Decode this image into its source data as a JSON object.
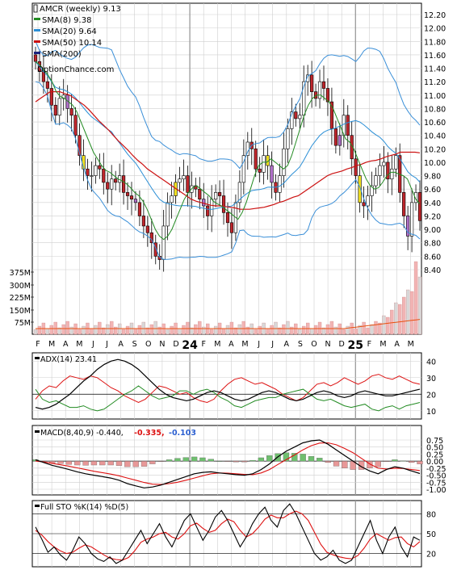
{
  "colors": {
    "sma8": "#228b22",
    "sma20": "#2b8fd6",
    "sma50": "#cc1111",
    "sma200": "#1a237e",
    "bollinger": "#3a8fd8",
    "bandOutside": "#e8e000",
    "candleUp": "#ffffff",
    "candleDown": "#c0262c",
    "candlePurple": "#b070c8",
    "candleYellow": "#f0e020",
    "volume": "#f2b4b4",
    "volumeAlt": "#d8d8d8",
    "volumeMA": "#e85010",
    "adx": "#000000",
    "plusDI": "#dd1111",
    "minusDI": "#228b22",
    "macdLine": "#000000",
    "signalLine": "#dd1111",
    "histUp": "#6fbf6f",
    "histDown": "#e89898",
    "stoK": "#000000",
    "stoD": "#dd1111",
    "grid": "#cfcfcf",
    "yearLine": "#9a9a9a"
  },
  "price_panel": {
    "legend": [
      {
        "label": "AMCR (weekly) 9.13",
        "icon": "candle-icon"
      },
      {
        "label": "SMA(8) 9.38",
        "color_key": "sma8"
      },
      {
        "label": "SMA(20) 9.64",
        "color_key": "sma20"
      },
      {
        "label": "SMA(50) 10.14",
        "color_key": "sma50"
      },
      {
        "label": "SMA(200)",
        "color_key": "sma200"
      }
    ],
    "watermark": "OptionChance.com",
    "price_ticks": [
      "12.20",
      "12.00",
      "11.80",
      "11.60",
      "11.40",
      "11.20",
      "11.00",
      "10.80",
      "10.60",
      "10.40",
      "10.20",
      "10.00",
      "9.80",
      "9.60",
      "9.40",
      "9.20",
      "9.00",
      "8.80",
      "8.60",
      "8.40"
    ],
    "volume_ticks": [
      "375M",
      "300M",
      "225M",
      "150M",
      "75M"
    ]
  },
  "x_axis": {
    "month_labels": [
      "F",
      "M",
      "A",
      "M",
      "J",
      "J",
      "A",
      "S",
      "O",
      "N",
      "D",
      "24",
      "F",
      "M",
      "A",
      "M",
      "J",
      "J",
      "A",
      "S",
      "O",
      "N",
      "D",
      "25",
      "F",
      "M",
      "A",
      "M"
    ]
  },
  "adx_panel": {
    "label": "ADX(14) 23.41",
    "ticks": [
      "40",
      "30",
      "20",
      "10"
    ]
  },
  "macd_panel": {
    "label": "MACD(8,40,9) -0.440,",
    "signal_value": "-0.335,",
    "hist_value": "-0.103",
    "ticks": [
      "0.75",
      "0.50",
      "0.25",
      "0.00",
      "-0.25",
      "-0.50",
      "-0.75",
      "-1.00"
    ]
  },
  "sto_panel": {
    "label": "Full STO %K(14) %D(5)",
    "ticks": [
      "80",
      "50",
      "20"
    ]
  },
  "chart_data": [
    {
      "type": "candlestick",
      "title": "AMCR (weekly) 9.13",
      "x_unit": "weeks (Feb 2023 - May 2025)",
      "ylim": [
        8.3,
        12.3
      ],
      "close": [
        11.5,
        11.35,
        11.2,
        11.1,
        10.85,
        10.7,
        10.95,
        11.0,
        10.8,
        10.7,
        10.4,
        10.1,
        9.9,
        9.8,
        9.8,
        9.95,
        9.9,
        9.7,
        9.6,
        9.75,
        9.7,
        9.8,
        9.55,
        9.5,
        9.45,
        9.4,
        9.2,
        9.05,
        8.95,
        8.8,
        8.6,
        8.55,
        9.05,
        9.4,
        9.5,
        9.7,
        9.75,
        9.8,
        9.55,
        9.65,
        9.6,
        9.45,
        9.35,
        9.2,
        9.45,
        9.55,
        9.5,
        9.25,
        9.1,
        8.95,
        9.4,
        9.7,
        10.1,
        10.3,
        10.2,
        9.9,
        9.85,
        10.1,
        9.95,
        9.7,
        9.55,
        9.8,
        10.2,
        10.5,
        10.75,
        10.65,
        10.7,
        11.2,
        11.3,
        11.05,
        10.95,
        11.2,
        11.1,
        10.9,
        10.5,
        10.25,
        10.4,
        10.7,
        10.4,
        10.05,
        9.8,
        9.4,
        9.35,
        9.5,
        9.65,
        9.8,
        9.95,
        10.0,
        9.75,
        9.9,
        10.1,
        9.55,
        9.2,
        8.9,
        9.4,
        9.55,
        9.13
      ],
      "sma8": [
        11.5,
        11.45,
        11.38,
        11.3,
        11.2,
        11.05,
        10.98,
        10.95,
        10.9,
        10.85,
        10.75,
        10.6,
        10.45,
        10.3,
        10.15,
        10.05,
        9.95,
        9.88,
        9.85,
        9.8,
        9.75,
        9.72,
        9.68,
        9.62,
        9.55,
        9.5,
        9.42,
        9.3,
        9.15,
        9.0,
        8.9,
        8.85,
        8.9,
        9.0,
        9.15,
        9.3,
        9.45,
        9.55,
        9.62,
        9.65,
        9.6,
        9.55,
        9.5,
        9.42,
        9.38,
        9.35,
        9.3,
        9.25,
        9.2,
        9.15,
        9.25,
        9.4,
        9.6,
        9.8,
        9.95,
        10.0,
        10.0,
        10.05,
        10.0,
        9.95,
        9.9,
        9.95,
        10.1,
        10.3,
        10.5,
        10.7,
        10.85,
        10.95,
        11.0,
        11.0,
        10.95,
        10.9,
        10.8,
        10.65,
        10.5,
        10.35,
        10.3,
        10.2,
        10.05,
        9.9,
        9.75,
        9.65,
        9.6,
        9.62,
        9.7,
        9.8,
        9.85,
        9.85,
        9.82,
        9.8,
        9.75,
        9.6,
        9.45,
        9.38
      ],
      "sma50": [
        10.9,
        10.95,
        11.0,
        11.05,
        11.05,
        11.05,
        11.02,
        11.0,
        10.95,
        10.9,
        10.85,
        10.78,
        10.7,
        10.62,
        10.55,
        10.48,
        10.4,
        10.32,
        10.25,
        10.18,
        10.1,
        10.03,
        9.97,
        9.9,
        9.85,
        9.8,
        9.75,
        9.7,
        9.65,
        9.6,
        9.55,
        9.5,
        9.45,
        9.42,
        9.4,
        9.38,
        9.36,
        9.35,
        9.35,
        9.34,
        9.33,
        9.32,
        9.3,
        9.3,
        9.3,
        9.31,
        9.32,
        9.33,
        9.35,
        9.37,
        9.4,
        9.42,
        9.45,
        9.48,
        9.5,
        9.55,
        9.6,
        9.65,
        9.7,
        9.75,
        9.8,
        9.83,
        9.85,
        9.87,
        9.9,
        9.92,
        9.95,
        9.97,
        10.0,
        10.02,
        10.03,
        10.05,
        10.08,
        10.1,
        10.12,
        10.15,
        10.15,
        10.15,
        10.15,
        10.14
      ]
    },
    {
      "type": "line",
      "title": "ADX(14) 23.41",
      "ylim": [
        5,
        45
      ],
      "series": [
        {
          "name": "ADX",
          "values": [
            12,
            11,
            12,
            14,
            17,
            20,
            24,
            28,
            31,
            35,
            38,
            40,
            41,
            40,
            38,
            35,
            31,
            27,
            23,
            20,
            18,
            17,
            16,
            17,
            19,
            21,
            22,
            21,
            19,
            17,
            16,
            17,
            19,
            21,
            22,
            21,
            19,
            17,
            16,
            17,
            19,
            21,
            22,
            21,
            19,
            18,
            19,
            21,
            22,
            21,
            20,
            19,
            19,
            20,
            21,
            22,
            23
          ]
        },
        {
          "name": "+DI",
          "values": [
            17,
            22,
            25,
            24,
            28,
            31,
            30,
            29,
            31,
            30,
            27,
            24,
            22,
            19,
            17,
            15,
            17,
            21,
            25,
            24,
            22,
            20,
            21,
            18,
            16,
            15,
            17,
            22,
            26,
            29,
            30,
            28,
            26,
            27,
            25,
            23,
            20,
            18,
            16,
            18,
            22,
            26,
            27,
            25,
            27,
            30,
            28,
            26,
            28,
            31,
            32,
            30,
            29,
            31,
            29,
            27,
            26
          ]
        },
        {
          "name": "-DI",
          "values": [
            23,
            17,
            15,
            16,
            14,
            12,
            12,
            13,
            11,
            10,
            11,
            14,
            17,
            20,
            22,
            25,
            22,
            19,
            17,
            18,
            19,
            22,
            22,
            20,
            22,
            23,
            21,
            18,
            16,
            13,
            12,
            14,
            16,
            17,
            18,
            18,
            20,
            21,
            22,
            23,
            20,
            17,
            16,
            17,
            15,
            13,
            12,
            13,
            14,
            11,
            10,
            12,
            13,
            11,
            13,
            14,
            15
          ]
        }
      ]
    },
    {
      "type": "line",
      "title": "MACD(8,40,9)",
      "ylim": [
        -1.15,
        0.85
      ],
      "series": [
        {
          "name": "MACD",
          "values": [
            0.05,
            -0.05,
            -0.15,
            -0.22,
            -0.3,
            -0.38,
            -0.45,
            -0.5,
            -0.55,
            -0.6,
            -0.68,
            -0.8,
            -0.88,
            -0.95,
            -0.92,
            -0.85,
            -0.75,
            -0.65,
            -0.55,
            -0.45,
            -0.4,
            -0.38,
            -0.42,
            -0.45,
            -0.48,
            -0.5,
            -0.45,
            -0.3,
            -0.1,
            0.15,
            0.35,
            0.5,
            0.65,
            0.72,
            0.75,
            0.6,
            0.4,
            0.2,
            0.0,
            -0.2,
            -0.35,
            -0.45,
            -0.3,
            -0.2,
            -0.25,
            -0.35,
            -0.44
          ]
        },
        {
          "name": "Signal",
          "values": [
            0.0,
            -0.03,
            -0.08,
            -0.13,
            -0.18,
            -0.24,
            -0.3,
            -0.36,
            -0.41,
            -0.46,
            -0.52,
            -0.6,
            -0.68,
            -0.76,
            -0.82,
            -0.83,
            -0.8,
            -0.75,
            -0.68,
            -0.6,
            -0.52,
            -0.45,
            -0.42,
            -0.43,
            -0.45,
            -0.47,
            -0.48,
            -0.42,
            -0.3,
            -0.12,
            0.05,
            0.22,
            0.4,
            0.55,
            0.64,
            0.65,
            0.58,
            0.45,
            0.3,
            0.1,
            -0.1,
            -0.25,
            -0.28,
            -0.25,
            -0.26,
            -0.3,
            -0.335
          ]
        },
        {
          "name": "Histogram",
          "values": [
            0.05,
            -0.02,
            -0.07,
            -0.09,
            -0.12,
            -0.14,
            -0.15,
            -0.14,
            -0.14,
            -0.14,
            -0.16,
            -0.2,
            -0.2,
            -0.19,
            -0.1,
            -0.02,
            0.05,
            0.1,
            0.13,
            0.15,
            0.12,
            0.07,
            0.0,
            -0.02,
            -0.03,
            -0.03,
            0.03,
            0.12,
            0.2,
            0.27,
            0.3,
            0.28,
            0.25,
            0.17,
            0.11,
            -0.05,
            -0.18,
            -0.25,
            -0.3,
            -0.3,
            -0.25,
            -0.2,
            -0.02,
            0.05,
            0.01,
            -0.05,
            -0.103
          ]
        }
      ]
    },
    {
      "type": "line",
      "title": "Full STO %K(14) %D(5)",
      "ylim": [
        0,
        100
      ],
      "series": [
        {
          "name": "%K",
          "values": [
            60,
            42,
            22,
            30,
            18,
            10,
            25,
            45,
            35,
            20,
            12,
            8,
            15,
            5,
            10,
            25,
            40,
            55,
            35,
            50,
            65,
            45,
            30,
            50,
            70,
            80,
            60,
            40,
            55,
            75,
            85,
            70,
            50,
            30,
            45,
            65,
            80,
            90,
            70,
            60,
            85,
            95,
            80,
            60,
            40,
            20,
            10,
            15,
            25,
            10,
            5,
            10,
            30,
            50,
            70,
            40,
            20,
            45,
            60,
            30,
            15,
            45,
            40
          ]
        },
        {
          "name": "%D",
          "values": [
            55,
            48,
            38,
            30,
            24,
            20,
            22,
            28,
            33,
            30,
            24,
            18,
            13,
            11,
            10,
            14,
            24,
            37,
            42,
            45,
            50,
            52,
            45,
            42,
            50,
            62,
            66,
            58,
            52,
            55,
            65,
            72,
            68,
            55,
            45,
            50,
            60,
            72,
            78,
            74,
            74,
            80,
            84,
            80,
            70,
            52,
            34,
            22,
            18,
            15,
            13,
            12,
            17,
            28,
            42,
            50,
            45,
            40,
            44,
            45,
            35,
            30,
            38
          ]
        }
      ]
    }
  ]
}
